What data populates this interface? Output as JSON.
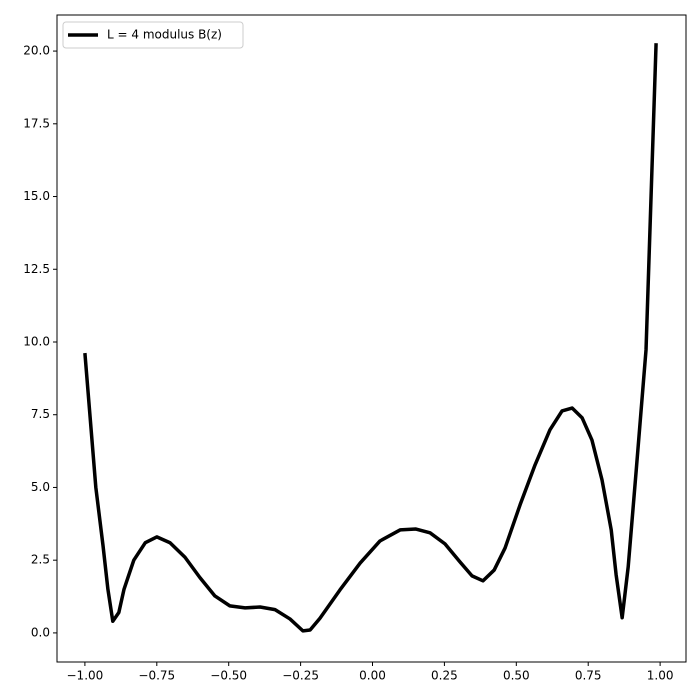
{
  "chart_data": {
    "type": "line",
    "x": [
      -1.0,
      -0.962,
      -0.937,
      -0.92,
      -0.903,
      -0.882,
      -0.864,
      -0.83,
      -0.79,
      -0.75,
      -0.704,
      -0.652,
      -0.6,
      -0.548,
      -0.496,
      -0.443,
      -0.391,
      -0.339,
      -0.287,
      -0.242,
      -0.217,
      -0.183,
      -0.113,
      -0.043,
      0.026,
      0.096,
      0.151,
      0.2,
      0.252,
      0.304,
      0.346,
      0.384,
      0.423,
      0.461,
      0.513,
      0.565,
      0.617,
      0.659,
      0.694,
      0.729,
      0.763,
      0.798,
      0.83,
      0.847,
      0.868,
      0.889,
      0.917,
      0.951,
      0.986
    ],
    "series": [
      {
        "name": "L = 4 modulus B(z)",
        "color": "#000000",
        "values": [
          9.62,
          5.0,
          3.0,
          1.5,
          0.4,
          0.7,
          1.5,
          2.5,
          3.1,
          3.3,
          3.1,
          2.6,
          1.9,
          1.27,
          0.93,
          0.86,
          0.89,
          0.8,
          0.48,
          0.07,
          0.1,
          0.5,
          1.48,
          2.4,
          3.16,
          3.54,
          3.57,
          3.44,
          3.06,
          2.44,
          1.96,
          1.79,
          2.16,
          2.92,
          4.4,
          5.77,
          6.98,
          7.63,
          7.73,
          7.39,
          6.63,
          5.26,
          3.54,
          2.0,
          0.52,
          2.27,
          5.6,
          9.73,
          20.27
        ]
      }
    ],
    "xlim": [
      -1.097,
      1.09
    ],
    "ylim": [
      -1.0,
      21.24
    ],
    "xticks": [
      {
        "value": -1.0,
        "label": "−1.00"
      },
      {
        "value": -0.75,
        "label": "−0.75"
      },
      {
        "value": -0.5,
        "label": "−0.50"
      },
      {
        "value": -0.25,
        "label": "−0.25"
      },
      {
        "value": 0,
        "label": "0.00"
      },
      {
        "value": 0.25,
        "label": "0.25"
      },
      {
        "value": 0.5,
        "label": "0.50"
      },
      {
        "value": 0.75,
        "label": "0.75"
      },
      {
        "value": 1.0,
        "label": "1.00"
      }
    ],
    "yticks": [
      {
        "value": 0,
        "label": "0.0"
      },
      {
        "value": 2.5,
        "label": "2.5"
      },
      {
        "value": 5,
        "label": "5.0"
      },
      {
        "value": 7.5,
        "label": "7.5"
      },
      {
        "value": 10,
        "label": "10.0"
      },
      {
        "value": 12.5,
        "label": "12.5"
      },
      {
        "value": 15,
        "label": "15.0"
      },
      {
        "value": 17.5,
        "label": "17.5"
      },
      {
        "value": 20,
        "label": "20.0"
      }
    ],
    "legend": "upper left"
  }
}
